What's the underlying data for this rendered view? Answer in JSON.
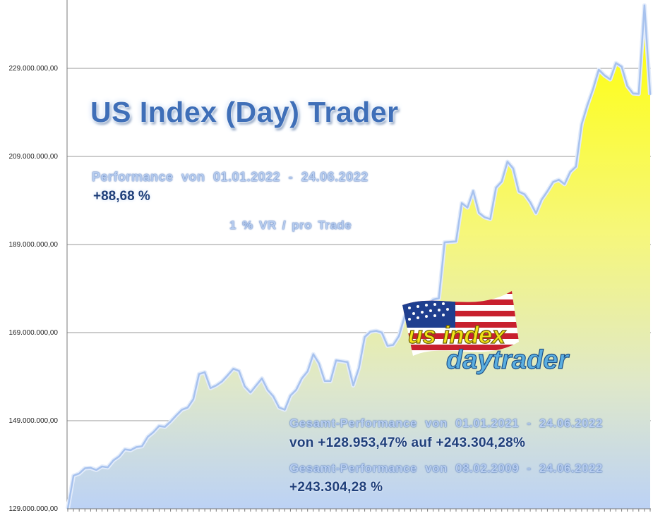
{
  "chart_data": {
    "type": "area",
    "ylim": [
      129000000,
      243304280
    ],
    "yticks": [
      {
        "value": 129000000,
        "label": "129.000.000,00"
      },
      {
        "value": 149000000,
        "label": "149.000.000,00"
      },
      {
        "value": 169000000,
        "label": "169.000.000,00"
      },
      {
        "value": 189000000,
        "label": "189.000.000,00"
      },
      {
        "value": 209000000,
        "label": "209.000.000,00"
      },
      {
        "value": 229000000,
        "label": "229.000.000,00"
      }
    ],
    "grid": true,
    "colors": {
      "area_top": "#ffff00",
      "area_bottom": "#bcd2f5",
      "line": "#a7c2ee",
      "grid": "#9a9a9a"
    },
    "values": [
      129000000,
      136500000,
      137000000,
      138200000,
      138300000,
      137800000,
      138600000,
      138400000,
      140000000,
      140900000,
      142500000,
      142300000,
      143000000,
      143200000,
      145300000,
      146400000,
      147800000,
      147600000,
      148800000,
      150200000,
      151500000,
      152000000,
      153900000,
      159600000,
      160000000,
      156400000,
      157000000,
      157900000,
      159300000,
      160800000,
      160300000,
      156800000,
      155400000,
      157000000,
      158600000,
      156000000,
      154500000,
      152000000,
      151500000,
      154700000,
      156000000,
      158600000,
      160200000,
      164100000,
      162000000,
      158000000,
      158000000,
      162700000,
      162500000,
      162300000,
      157000000,
      161000000,
      168000000,
      169200000,
      169400000,
      169000000,
      166000000,
      166200000,
      168200000,
      172700000,
      173700000,
      172700000,
      174800000,
      175200000,
      176500000,
      176800000,
      189500000,
      189600000,
      189700000,
      198400000,
      197400000,
      201200000,
      196200000,
      195200000,
      194800000,
      201900000,
      203300000,
      207800000,
      206300000,
      201000000,
      200400000,
      198600000,
      196100000,
      199200000,
      201100000,
      203200000,
      203700000,
      202700000,
      205500000,
      206700000,
      216300000,
      220600000,
      224300000,
      228700000,
      227400000,
      226500000,
      230200000,
      229400000,
      225000000,
      223300000,
      223200000,
      243304280,
      223000000
    ]
  },
  "texts": {
    "title": "US Index (Day) Trader",
    "performance_label": "Performance  von  01.01.2022 - 24.06.2022",
    "performance_value": "+88,68 %",
    "risk_note": "1 % VR / pro Trade",
    "gesamt1_label": "Gesamt-Performance  von  01.01.2021 - 24.06.2022",
    "gesamt1_value": "von +128.953,47% auf  +243.304,28%",
    "gesamt2_label": "Gesamt-Performance  von  08.02.2009 - 24.06.2022",
    "gesamt2_value": "+243.304,28 %"
  },
  "logo": {
    "line1": "us index",
    "line2": "daytrader",
    "icon": "us-flag-icon",
    "colors": {
      "us": "#f2e31a",
      "index": "#f2e31a",
      "daytrader": "#5aaee0"
    }
  }
}
